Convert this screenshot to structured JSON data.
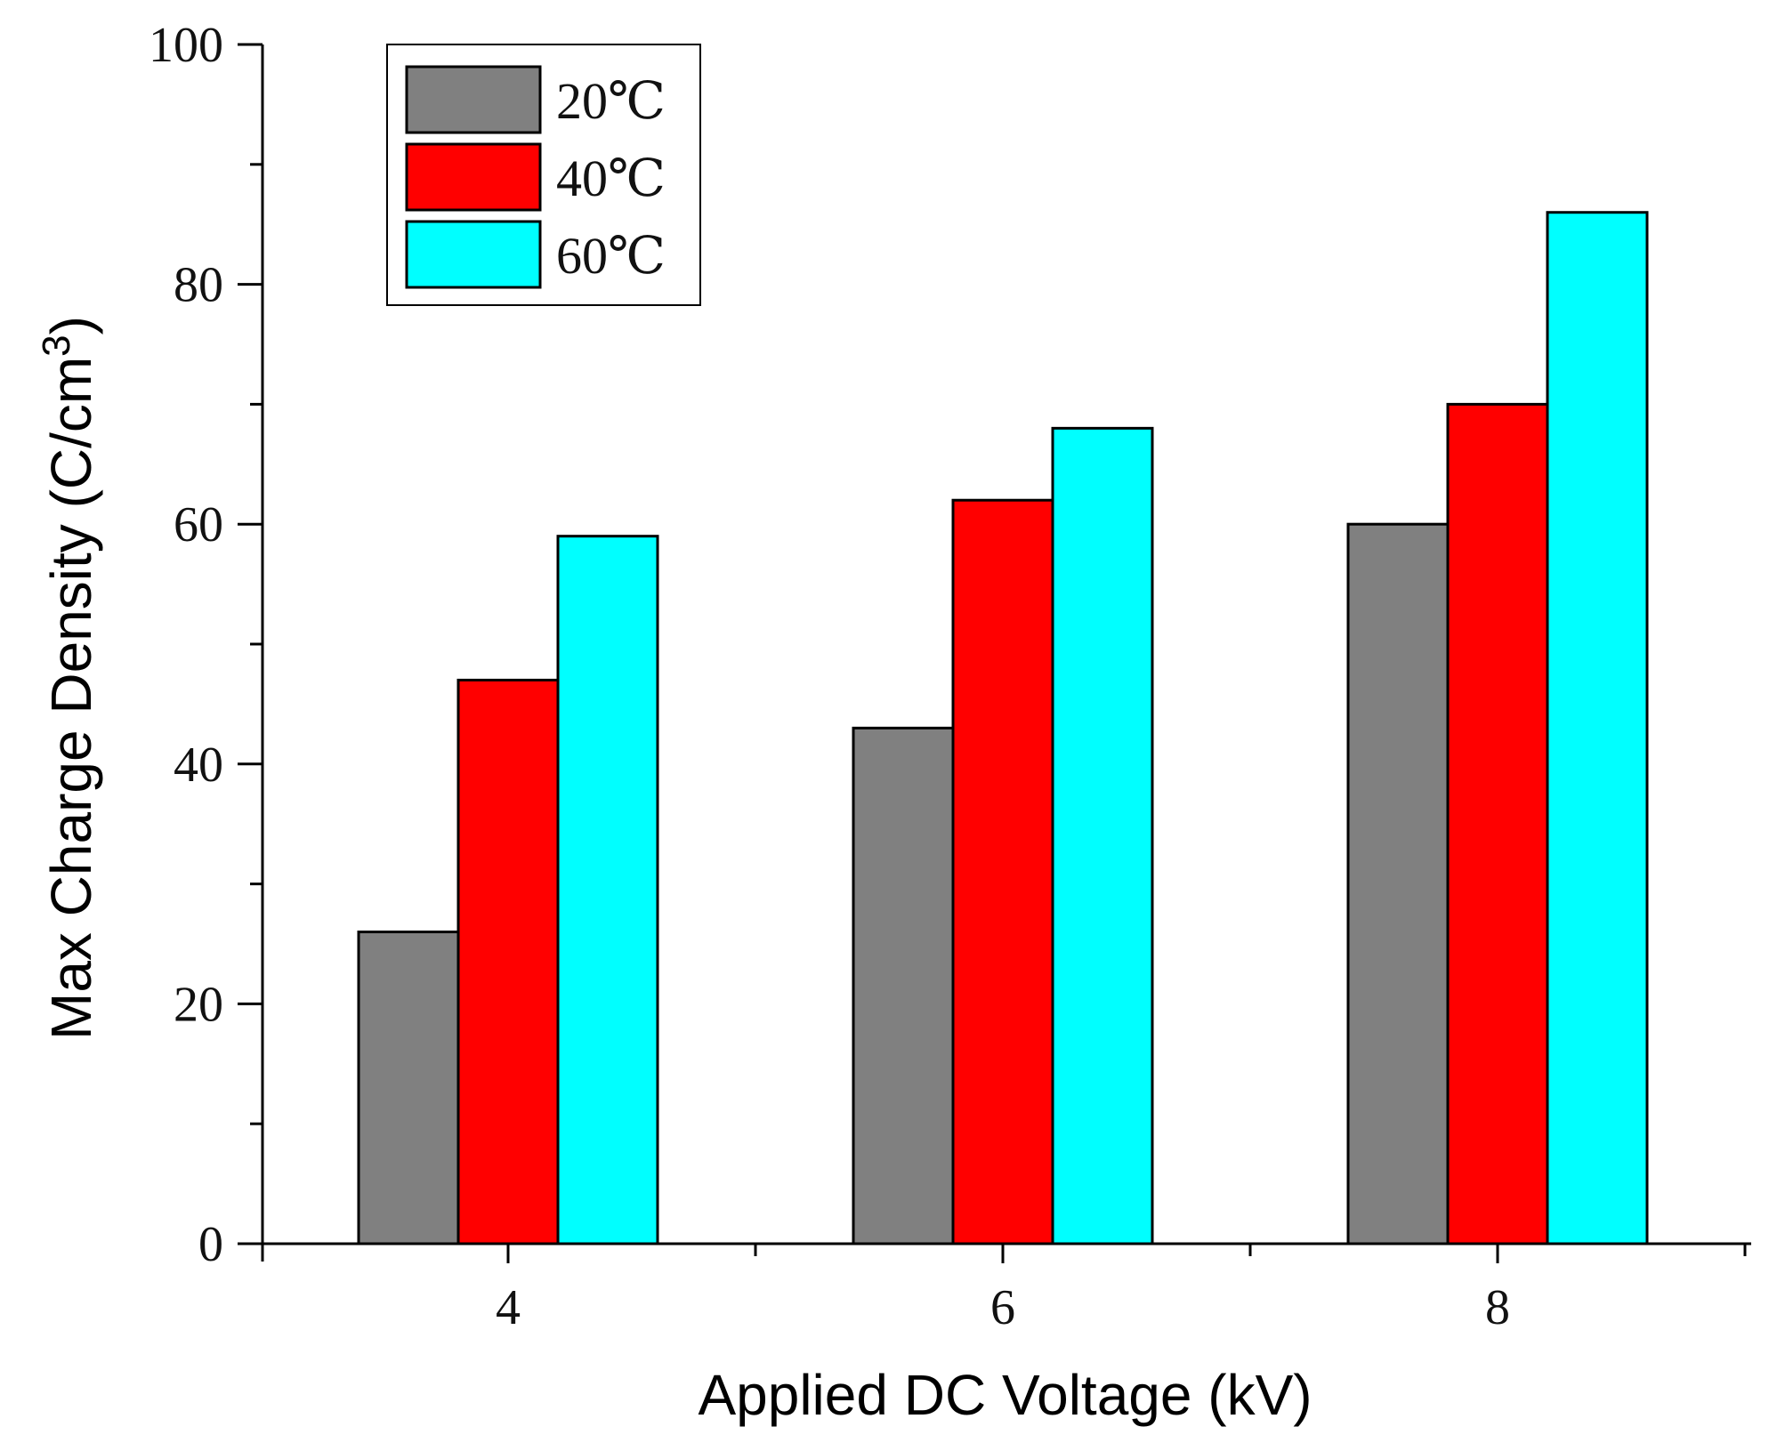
{
  "chart_data": {
    "type": "bar",
    "title": "",
    "xlabel": "Applied DC Voltage (kV)",
    "ylabel": "Max Charge Density (C/cm3)",
    "ylabel_main": "Max Charge Density (C/cm",
    "ylabel_sup": "3",
    "ylabel_close": ")",
    "categories": [
      "4",
      "6",
      "8"
    ],
    "ylim": [
      0,
      100
    ],
    "yticks": [
      "0",
      "20",
      "40",
      "60",
      "80",
      "100"
    ],
    "legend_position": "top-left",
    "series": [
      {
        "name": "20℃",
        "color": "#808080",
        "values": [
          26,
          43,
          60
        ]
      },
      {
        "name": "40℃",
        "color": "#ff0000",
        "values": [
          47,
          62,
          70
        ]
      },
      {
        "name": "60℃",
        "color": "#00ffff",
        "values": [
          59,
          68,
          86
        ]
      }
    ]
  }
}
